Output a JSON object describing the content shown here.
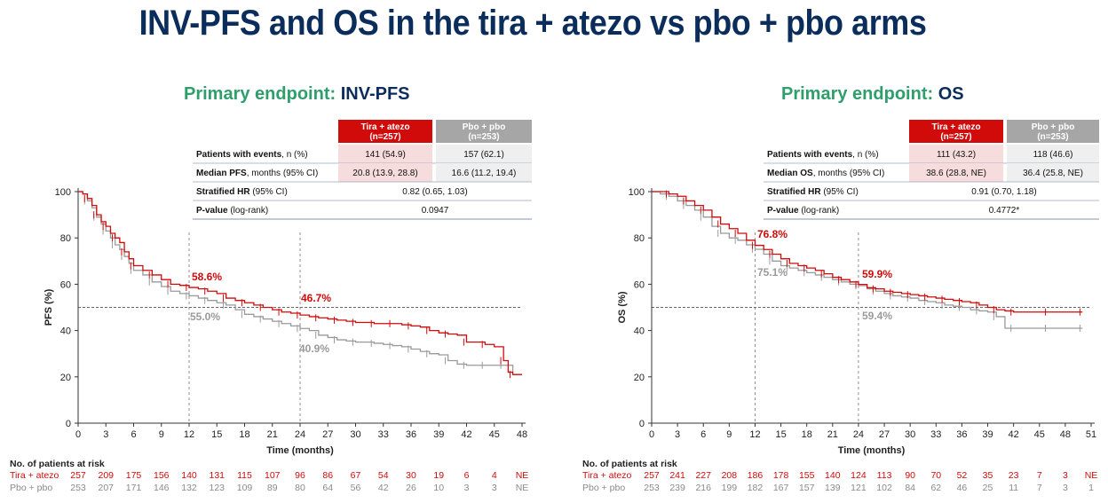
{
  "title": "INV-PFS and OS in the tira + atezo vs pbo + pbo arms",
  "colors": {
    "title": "#0b2d5b",
    "endpoint_green": "#2e9f6b",
    "tira": "#d10a0a",
    "pbo": "#9a9a9a",
    "pbo_header": "#a6a6a6",
    "tira_cell": "#f6dcdc",
    "pbo_cell": "#efefef"
  },
  "panels": [
    {
      "endpoint_prefix": "Primary endpoint: ",
      "endpoint_name": "INV-PFS",
      "table": {
        "headers": [
          "Tira + atezo\n(n=257)",
          "Pbo + pbo\n(n=253)"
        ],
        "rows": [
          {
            "label_bold": "Patients with events",
            "label_rest": ", n (%)",
            "tira": "141 (54.9)",
            "pbo": "157 (62.1)"
          },
          {
            "label_bold": "Median PFS",
            "label_rest": ", months (95% CI)",
            "tira": "20.8 (13.9, 28.8)",
            "pbo": "16.6 (11.2, 19.4)"
          },
          {
            "label_bold": "Stratified HR",
            "label_rest": " (95% CI)",
            "merged": "0.82 (0.65, 1.03)"
          },
          {
            "label_bold": "P-value",
            "label_rest": " (log-rank)",
            "merged": "0.0947"
          }
        ]
      },
      "risk_table": {
        "title": "No. of patients at risk",
        "rows": [
          {
            "label": "Tira + atezo",
            "values": [
              "257",
              "209",
              "175",
              "156",
              "140",
              "131",
              "115",
              "107",
              "96",
              "86",
              "67",
              "54",
              "30",
              "19",
              "6",
              "4",
              "NE"
            ]
          },
          {
            "label": "Pbo + pbo",
            "values": [
              "253",
              "207",
              "171",
              "146",
              "132",
              "123",
              "109",
              "89",
              "80",
              "64",
              "56",
              "42",
              "26",
              "10",
              "3",
              "3",
              "NE"
            ]
          }
        ]
      }
    },
    {
      "endpoint_prefix": "Primary endpoint: ",
      "endpoint_name": "OS",
      "table": {
        "headers": [
          "Tira + atezo\n(n=257)",
          "Pbo + pbo\n(n=253)"
        ],
        "rows": [
          {
            "label_bold": "Patients with events",
            "label_rest": ", n (%)",
            "tira": "111 (43.2)",
            "pbo": "118 (46.6)"
          },
          {
            "label_bold": "Median OS",
            "label_rest": ", months (95% CI)",
            "tira": "38.6 (28.8, NE)",
            "pbo": "36.4 (25.8, NE)"
          },
          {
            "label_bold": "Stratified HR",
            "label_rest": " (95% CI)",
            "merged": "0.91 (0.70, 1.18)"
          },
          {
            "label_bold": "P-value",
            "label_rest": " (log-rank)",
            "merged": "0.4772*"
          }
        ]
      },
      "risk_table": {
        "title": "No. of patients at risk",
        "rows": [
          {
            "label": "Tira + atezo",
            "values": [
              "257",
              "241",
              "227",
              "208",
              "186",
              "178",
              "155",
              "140",
              "124",
              "113",
              "90",
              "70",
              "52",
              "35",
              "23",
              "7",
              "3",
              "NE"
            ]
          },
          {
            "label": "Pbo + pbo",
            "values": [
              "253",
              "239",
              "216",
              "199",
              "182",
              "167",
              "157",
              "139",
              "121",
              "102",
              "84",
              "62",
              "46",
              "25",
              "11",
              "7",
              "3",
              "1"
            ]
          }
        ]
      }
    }
  ],
  "chart_data": [
    {
      "type": "line",
      "xlabel": "Time (months)",
      "ylabel": "PFS (%)",
      "xlim": [
        0,
        48
      ],
      "ylim": [
        0,
        100
      ],
      "xticks": [
        "0",
        "3",
        "6",
        "9",
        "12",
        "15",
        "18",
        "21",
        "24",
        "27",
        "30",
        "33",
        "36",
        "39",
        "42",
        "45",
        "48"
      ],
      "yticks": [
        "0",
        "20",
        "40",
        "60",
        "80",
        "100"
      ],
      "median_line": 50,
      "reference_times": [
        12,
        24
      ],
      "annotations": [
        {
          "text": "58.6%",
          "series": "Tira + atezo",
          "x": 12,
          "y": 58.6
        },
        {
          "text": "55.0%",
          "series": "Pbo + pbo",
          "x": 12,
          "y": 55.0
        },
        {
          "text": "46.7%",
          "series": "Tira + atezo",
          "x": 24,
          "y": 46.7
        },
        {
          "text": "40.9%",
          "series": "Pbo + pbo",
          "x": 24,
          "y": 40.9
        }
      ],
      "series": [
        {
          "name": "Tira + atezo",
          "color": "#d10a0a",
          "x": [
            0,
            0.5,
            1,
            1.5,
            2,
            2.5,
            3,
            3.5,
            4,
            4.5,
            5,
            5.5,
            6,
            7,
            8,
            9,
            10,
            11,
            12,
            13,
            14,
            15,
            16,
            17,
            18,
            19,
            20,
            21,
            22,
            23,
            24,
            25,
            26,
            27,
            28,
            29,
            30,
            31,
            32,
            33,
            34,
            35,
            36,
            37,
            38,
            39,
            40,
            41,
            42,
            43,
            44,
            45,
            46,
            46.5,
            47,
            48
          ],
          "y": [
            100,
            99,
            97,
            94,
            90,
            87,
            85,
            82,
            80,
            78,
            74,
            71,
            68,
            66,
            64,
            62,
            60,
            59.5,
            58.6,
            58,
            57,
            56,
            54,
            53,
            52,
            51,
            50,
            49,
            48,
            47.5,
            46.7,
            46,
            45.5,
            45,
            44.5,
            44,
            43.5,
            43.5,
            43,
            43,
            43,
            42.5,
            42,
            41.5,
            40,
            39,
            38.5,
            38,
            35,
            35,
            34,
            33,
            27,
            22,
            21,
            21
          ]
        },
        {
          "name": "Pbo + pbo",
          "color": "#9a9a9a",
          "x": [
            0,
            0.5,
            1,
            1.5,
            2,
            2.5,
            3,
            3.5,
            4,
            4.5,
            5,
            5.5,
            6,
            7,
            8,
            9,
            10,
            11,
            12,
            13,
            14,
            15,
            16,
            17,
            18,
            19,
            20,
            21,
            22,
            23,
            24,
            25,
            26,
            27,
            28,
            29,
            30,
            31,
            32,
            33,
            34,
            35,
            36,
            37,
            38,
            39,
            40,
            41,
            42,
            43,
            44,
            45,
            46,
            47
          ],
          "y": [
            100,
            99,
            96,
            93,
            89,
            86,
            83,
            80,
            77,
            75,
            72,
            69,
            66,
            64,
            61,
            59,
            57,
            56,
            55,
            54,
            53,
            52,
            51,
            49,
            47,
            46,
            45,
            44,
            43,
            42,
            40.9,
            40,
            38,
            37,
            36,
            35.5,
            35,
            35,
            34.5,
            34,
            33.5,
            33,
            32,
            31,
            30,
            29.5,
            27,
            25.5,
            25,
            25,
            25,
            25,
            25,
            22
          ]
        }
      ]
    },
    {
      "type": "line",
      "xlabel": "Time (months)",
      "ylabel": "OS (%)",
      "xlim": [
        0,
        51
      ],
      "ylim": [
        0,
        100
      ],
      "xticks": [
        "0",
        "3",
        "6",
        "9",
        "12",
        "15",
        "18",
        "21",
        "24",
        "27",
        "30",
        "33",
        "36",
        "39",
        "42",
        "45",
        "48",
        "51"
      ],
      "yticks": [
        "0",
        "20",
        "40",
        "60",
        "80",
        "100"
      ],
      "median_line": 50,
      "reference_times": [
        12,
        24
      ],
      "annotations": [
        {
          "text": "76.8%",
          "series": "Tira + atezo",
          "x": 12,
          "y": 76.8
        },
        {
          "text": "75.1%",
          "series": "Pbo + pbo",
          "x": 12,
          "y": 75.1
        },
        {
          "text": "59.9%",
          "series": "Tira + atezo",
          "x": 24,
          "y": 59.9
        },
        {
          "text": "59.4%",
          "series": "Pbo + pbo",
          "x": 24,
          "y": 59.4
        }
      ],
      "series": [
        {
          "name": "Tira + atezo",
          "color": "#d10a0a",
          "x": [
            0,
            1,
            2,
            3,
            4,
            5,
            6,
            7,
            8,
            9,
            10,
            11,
            12,
            13,
            14,
            15,
            16,
            17,
            18,
            19,
            20,
            21,
            22,
            23,
            24,
            25,
            26,
            27,
            28,
            29,
            30,
            31,
            32,
            33,
            34,
            35,
            36,
            37,
            38,
            39,
            40,
            41,
            42,
            44,
            46,
            48,
            50
          ],
          "y": [
            100,
            100,
            99,
            98,
            96,
            94,
            92,
            89,
            86,
            84,
            82,
            79,
            76.8,
            75,
            73,
            71,
            69,
            68,
            67,
            66,
            64.5,
            63,
            62,
            61,
            59.9,
            58.5,
            58,
            57,
            56.5,
            56,
            55.5,
            55,
            54.5,
            54,
            53.5,
            53,
            52.5,
            52,
            51,
            50,
            49,
            48.5,
            48,
            48,
            48,
            48,
            48
          ]
        },
        {
          "name": "Pbo + pbo",
          "color": "#9a9a9a",
          "x": [
            0,
            1,
            2,
            3,
            4,
            5,
            6,
            7,
            8,
            9,
            10,
            11,
            12,
            13,
            14,
            15,
            16,
            17,
            18,
            19,
            20,
            21,
            22,
            23,
            24,
            25,
            26,
            27,
            28,
            29,
            30,
            31,
            32,
            33,
            34,
            35,
            36,
            37,
            38,
            39,
            40,
            41,
            42,
            44,
            46,
            48,
            50
          ],
          "y": [
            100,
            99,
            98,
            96,
            94,
            92,
            89,
            85,
            82,
            80,
            79,
            77,
            75.1,
            73,
            70,
            68,
            67,
            66,
            65,
            64,
            63,
            62,
            61,
            60,
            59.4,
            58,
            57,
            56,
            55,
            54.5,
            54,
            53,
            52.5,
            52,
            51,
            50.5,
            50,
            49,
            48.5,
            48,
            46,
            41,
            41,
            41,
            41,
            41,
            41
          ]
        }
      ]
    }
  ]
}
